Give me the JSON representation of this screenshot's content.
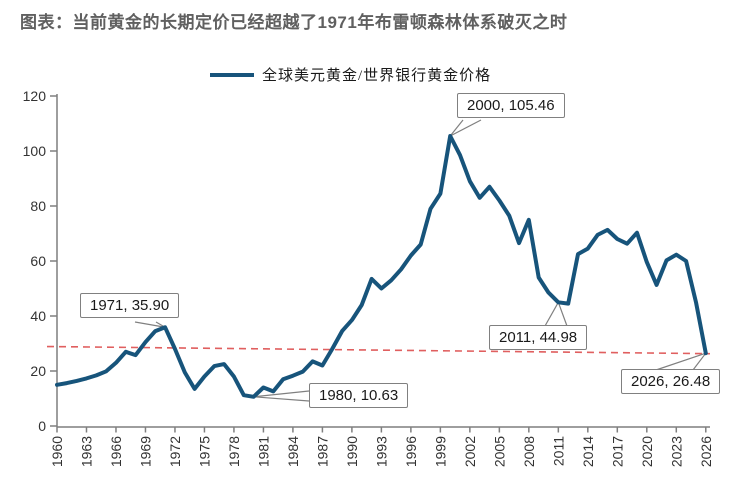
{
  "title": "图表：当前黄金的长期定价已经超越了1971年布雷顿森林体系破灭之时",
  "legend": {
    "label": "全球美元黄金/世界银行黄金价格"
  },
  "colors": {
    "series_line": "#17547b",
    "trend_line": "#e05f5f",
    "axis": "#7f7f7f",
    "tick_text": "#333333",
    "title_text": "#606060",
    "callout_border": "#808080"
  },
  "chart_data": {
    "type": "line",
    "title": "图表：当前黄金的长期定价已经超越了1971年布雷顿森林体系破灭之时",
    "xlabel": "",
    "ylabel": "",
    "grid": false,
    "legend_position": "top",
    "ylim": [
      0,
      120
    ],
    "y_ticks": [
      0,
      20,
      40,
      60,
      80,
      100,
      120
    ],
    "x_ticks": [
      1960,
      1963,
      1966,
      1969,
      1972,
      1975,
      1978,
      1981,
      1984,
      1987,
      1990,
      1993,
      1996,
      1999,
      2002,
      2005,
      2008,
      2011,
      2014,
      2017,
      2020,
      2023,
      2026
    ],
    "series": [
      {
        "name": "全球美元黄金/世界银行黄金价格",
        "x": [
          1960,
          1961,
          1962,
          1963,
          1964,
          1965,
          1966,
          1967,
          1968,
          1969,
          1970,
          1971,
          1972,
          1973,
          1974,
          1975,
          1976,
          1977,
          1978,
          1979,
          1980,
          1981,
          1982,
          1983,
          1984,
          1985,
          1986,
          1987,
          1988,
          1989,
          1990,
          1991,
          1992,
          1993,
          1994,
          1995,
          1996,
          1997,
          1998,
          1999,
          2000,
          2001,
          2002,
          2003,
          2004,
          2005,
          2006,
          2007,
          2008,
          2009,
          2010,
          2011,
          2012,
          2013,
          2014,
          2015,
          2016,
          2017,
          2018,
          2019,
          2020,
          2021,
          2022,
          2023,
          2024,
          2025,
          2026
        ],
        "values": [
          15.0,
          15.6,
          16.4,
          17.3,
          18.4,
          19.9,
          23.0,
          27.0,
          25.8,
          30.5,
          34.5,
          35.9,
          28.0,
          19.5,
          13.5,
          18.0,
          21.8,
          22.5,
          18.0,
          11.2,
          10.63,
          14.0,
          12.6,
          17.0,
          18.3,
          19.8,
          23.5,
          22.0,
          28.0,
          34.5,
          38.5,
          44.0,
          53.5,
          50.0,
          53.0,
          57.0,
          62.0,
          66.0,
          79.0,
          84.5,
          105.46,
          98.5,
          89.0,
          83.0,
          87.0,
          82.0,
          76.5,
          66.5,
          75.0,
          54.0,
          48.5,
          44.98,
          44.5,
          62.5,
          64.5,
          69.5,
          71.3,
          68.0,
          66.3,
          70.3,
          59.6,
          51.3,
          60.2,
          62.3,
          60.0,
          45.0,
          26.48
        ]
      }
    ],
    "trend_line": {
      "style": "dashed",
      "color": "#e05f5f",
      "start": {
        "year": 1960,
        "value": 28.9
      },
      "end": {
        "year": 2026,
        "value": 26.3
      }
    },
    "annotations": [
      {
        "label": "1971, 35.90",
        "year": 1971,
        "value": 35.9
      },
      {
        "label": "2000, 105.46",
        "year": 2000,
        "value": 105.46
      },
      {
        "label": "1980, 10.63",
        "year": 1980,
        "value": 10.63
      },
      {
        "label": "2011, 44.98",
        "year": 2011,
        "value": 44.98
      },
      {
        "label": "2026, 26.48",
        "year": 2026,
        "value": 26.48
      }
    ]
  }
}
